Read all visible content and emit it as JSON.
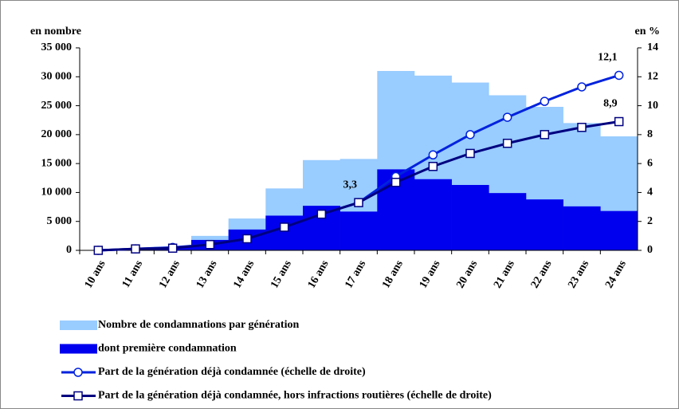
{
  "chart_data": {
    "type": "combo",
    "y_label": "en nombre",
    "y2_label": "en %",
    "categories": [
      "10 ans",
      "11 ans",
      "12 ans",
      "13 ans",
      "14 ans",
      "15 ans",
      "16 ans",
      "17 ans",
      "18 ans",
      "19 ans",
      "20 ans",
      "21 ans",
      "22 ans",
      "23 ans",
      "24 ans"
    ],
    "series": [
      {
        "name": "Nombre de condamnations par génération",
        "type": "bar",
        "color": "#99ccff",
        "values": [
          0,
          300,
          600,
          2500,
          5500,
          10700,
          15600,
          15800,
          31000,
          30200,
          29000,
          26800,
          24800,
          22000,
          19700
        ]
      },
      {
        "name": "dont première condamnation",
        "type": "bar",
        "color": "#0000ee",
        "values": [
          0,
          300,
          500,
          1800,
          3600,
          6000,
          7700,
          6700,
          14000,
          12300,
          11300,
          9900,
          8800,
          7600,
          6800
        ]
      },
      {
        "name": "Part de la génération déjà condamnée (échelle de droite)",
        "type": "line",
        "marker": "circle",
        "axis": "y2",
        "color": "#0022dd",
        "values": [
          0,
          0.1,
          0.2,
          0.4,
          0.8,
          1.6,
          2.5,
          3.3,
          5.1,
          6.6,
          8.0,
          9.2,
          10.3,
          11.3,
          12.1
        ],
        "value_labels": [
          null,
          null,
          null,
          null,
          null,
          null,
          null,
          "3,3",
          null,
          null,
          null,
          null,
          null,
          null,
          "12,1"
        ]
      },
      {
        "name": "Part de la génération déjà condamnée, hors infractions routières (échelle de droite)",
        "type": "line",
        "marker": "square",
        "axis": "y2",
        "color": "#000080",
        "values": [
          0,
          0.1,
          0.15,
          0.4,
          0.8,
          1.6,
          2.5,
          3.3,
          4.7,
          5.8,
          6.7,
          7.4,
          8.0,
          8.5,
          8.9
        ],
        "value_labels": [
          null,
          null,
          null,
          null,
          null,
          null,
          null,
          null,
          null,
          null,
          null,
          null,
          null,
          null,
          "8,9"
        ]
      }
    ],
    "ylim": [
      0,
      35000
    ],
    "yticks": [
      0,
      {
        "value": 5000,
        "label": "5 000"
      },
      {
        "value": 10000,
        "label": "10 000"
      },
      {
        "value": 15000,
        "label": "15 000"
      },
      {
        "value": 20000,
        "label": "20 000"
      },
      {
        "value": 25000,
        "label": "25 000"
      },
      {
        "value": 30000,
        "label": "30 000"
      },
      {
        "value": 35000,
        "label": "35 000"
      }
    ],
    "y2lim": [
      0,
      14
    ],
    "y2ticks": [
      0,
      2,
      4,
      6,
      8,
      10,
      12,
      14
    ],
    "legend": "bottom-left"
  }
}
